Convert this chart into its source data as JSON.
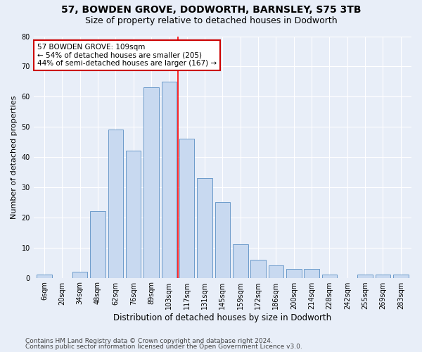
{
  "title1": "57, BOWDEN GROVE, DODWORTH, BARNSLEY, S75 3TB",
  "title2": "Size of property relative to detached houses in Dodworth",
  "xlabel": "Distribution of detached houses by size in Dodworth",
  "ylabel": "Number of detached properties",
  "bar_labels": [
    "6sqm",
    "20sqm",
    "34sqm",
    "48sqm",
    "62sqm",
    "76sqm",
    "89sqm",
    "103sqm",
    "117sqm",
    "131sqm",
    "145sqm",
    "159sqm",
    "172sqm",
    "186sqm",
    "200sqm",
    "214sqm",
    "228sqm",
    "242sqm",
    "255sqm",
    "269sqm",
    "283sqm"
  ],
  "bar_values": [
    1,
    0,
    2,
    22,
    49,
    42,
    63,
    65,
    46,
    33,
    25,
    11,
    6,
    4,
    3,
    3,
    1,
    0,
    1,
    1,
    1
  ],
  "bar_color": "#c8d9f0",
  "bar_edge_color": "#5a8fc4",
  "redline_bar_index": 7.5,
  "annotation_line1": "57 BOWDEN GROVE: 109sqm",
  "annotation_line2": "← 54% of detached houses are smaller (205)",
  "annotation_line3": "44% of semi-detached houses are larger (167) →",
  "annotation_box_color": "#ffffff",
  "annotation_box_edge_color": "#cc0000",
  "ylim": [
    0,
    80
  ],
  "yticks": [
    0,
    10,
    20,
    30,
    40,
    50,
    60,
    70,
    80
  ],
  "footer1": "Contains HM Land Registry data © Crown copyright and database right 2024.",
  "footer2": "Contains public sector information licensed under the Open Government Licence v3.0.",
  "bg_color": "#e8eef8",
  "plot_bg_color": "#e8eef8",
  "grid_color": "#ffffff",
  "title1_fontsize": 10,
  "title2_fontsize": 9,
  "xlabel_fontsize": 8.5,
  "ylabel_fontsize": 8,
  "tick_fontsize": 7,
  "footer_fontsize": 6.5,
  "annotation_fontsize": 7.5
}
